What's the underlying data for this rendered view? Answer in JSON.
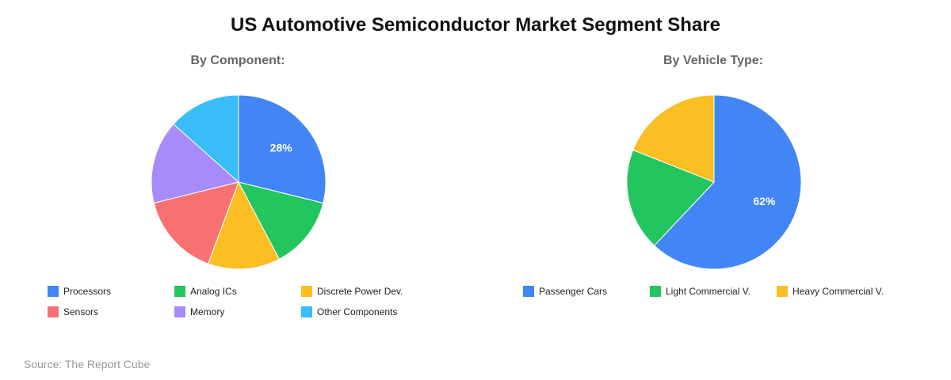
{
  "title": "US Automotive Semiconductor Market Segment Share",
  "source": "Source: The Report Cube",
  "chart_data": [
    {
      "type": "pie",
      "title": "By Component:",
      "categories": [
        "Processors",
        "Analog ICs",
        "Discrete Power Dev.",
        "Sensors",
        "Memory",
        "Other Components"
      ],
      "values": [
        28,
        13,
        13,
        15,
        15,
        13
      ],
      "colors": [
        "#4285f4",
        "#22c55e",
        "#fbbf24",
        "#f87171",
        "#a78bfa",
        "#38bdf8"
      ],
      "slice_labels": [
        "28%",
        "",
        "",
        "",
        "",
        ""
      ],
      "legend_position": "bottom"
    },
    {
      "type": "pie",
      "title": "By Vehicle Type:",
      "categories": [
        "Passenger Cars",
        "Light Commercial V.",
        "Heavy Commercial V."
      ],
      "values": [
        62,
        19,
        19
      ],
      "colors": [
        "#4285f4",
        "#22c55e",
        "#fbbf24"
      ],
      "slice_labels": [
        "62%",
        "",
        ""
      ],
      "legend_position": "bottom"
    }
  ]
}
